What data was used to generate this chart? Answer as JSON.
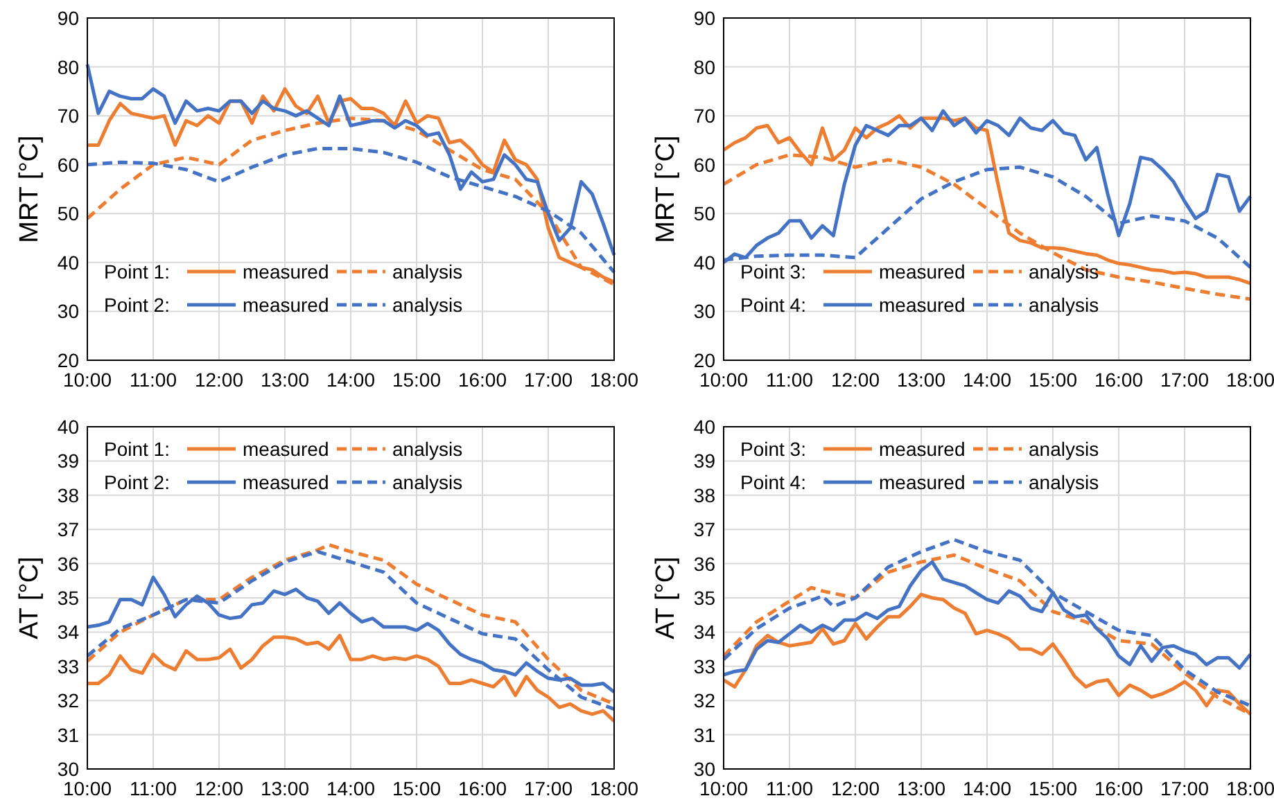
{
  "chart_data": [
    {
      "type": "line",
      "ylabel": "MRT [°C]",
      "xlim": [
        10,
        18
      ],
      "ylim": [
        20,
        90
      ],
      "yticks": [
        20,
        30,
        40,
        50,
        60,
        70,
        80,
        90
      ],
      "xticks": [
        {
          "value": 10,
          "label": "10:00"
        },
        {
          "value": 11,
          "label": "11:00"
        },
        {
          "value": 12,
          "label": "12:00"
        },
        {
          "value": 13,
          "label": "13:00"
        },
        {
          "value": 14,
          "label": "14:00"
        },
        {
          "value": 15,
          "label": "15:00"
        },
        {
          "value": 16,
          "label": "16:00"
        },
        {
          "value": 17,
          "label": "17:00"
        },
        {
          "value": 18,
          "label": "18:00"
        }
      ],
      "grid": true,
      "legend": "bottom left",
      "marker": "none",
      "annotations": [
        "Point 1:",
        "Point 2:"
      ],
      "x": [
        10,
        10.167,
        10.333,
        10.5,
        10.667,
        10.833,
        11,
        11.167,
        11.333,
        11.5,
        11.667,
        11.833,
        12,
        12.167,
        12.333,
        12.5,
        12.667,
        12.833,
        13,
        13.167,
        13.333,
        13.5,
        13.667,
        13.833,
        14,
        14.167,
        14.333,
        14.5,
        14.667,
        14.833,
        15,
        15.167,
        15.333,
        15.5,
        15.667,
        15.833,
        16,
        16.167,
        16.333,
        16.5,
        16.667,
        16.833,
        17,
        17.167,
        17.333,
        17.5,
        17.667,
        17.833,
        18
      ],
      "series": [
        {
          "name": "measured",
          "color": "#ed7d31",
          "line_style": "solid",
          "values": [
            64,
            64,
            69,
            72.5,
            70.5,
            70,
            69.5,
            70,
            64,
            69,
            68,
            70,
            68.5,
            73,
            73,
            68.5,
            74,
            71,
            75.5,
            72,
            70.5,
            74,
            68.5,
            73,
            73.5,
            71.5,
            71.5,
            70.5,
            68,
            73,
            68.5,
            70,
            69.5,
            64.5,
            65,
            63,
            60,
            58.5,
            65,
            61,
            60,
            57,
            47,
            41,
            40,
            39,
            38.5,
            37,
            36
          ]
        },
        {
          "name": "analysis",
          "color": "#ed7d31",
          "line_style": "dashed",
          "x": [
            10,
            10.5,
            11,
            11.5,
            12,
            12.5,
            13,
            13.5,
            14,
            14.5,
            15,
            15.5,
            16,
            16.5,
            17,
            17.5,
            18
          ],
          "values": [
            49,
            55,
            60,
            61.5,
            60,
            65,
            67,
            68.5,
            69.5,
            69,
            67,
            63,
            59,
            57,
            50,
            39,
            35.5
          ]
        },
        {
          "name": "measured",
          "color": "#4472c4",
          "line_style": "solid",
          "values": [
            80.5,
            70.5,
            75,
            74,
            73.5,
            73.5,
            75.5,
            74,
            68.5,
            73,
            71,
            71.5,
            71,
            73,
            73,
            70.5,
            73,
            71.5,
            71,
            70,
            71,
            69.5,
            68,
            74,
            68,
            68.5,
            69,
            69,
            67.5,
            69,
            68,
            66,
            66.5,
            62,
            55,
            58.5,
            56.5,
            57,
            62,
            60,
            57,
            56.5,
            50,
            44.5,
            47,
            56.5,
            54,
            48,
            41.5
          ]
        },
        {
          "name": "analysis",
          "color": "#4472c4",
          "line_style": "dashed",
          "x": [
            10,
            10.5,
            11,
            11.5,
            12,
            12.5,
            13,
            13.5,
            14,
            14.5,
            15,
            15.5,
            16,
            16.5,
            17,
            17.5,
            18
          ],
          "values": [
            60,
            60.5,
            60.3,
            59,
            56.5,
            59.5,
            62,
            63.3,
            63.3,
            62.5,
            60.5,
            57.5,
            55.5,
            53.5,
            50.5,
            46,
            38
          ]
        }
      ]
    },
    {
      "type": "line",
      "ylabel": "MRT [°C]",
      "xlim": [
        10,
        18
      ],
      "ylim": [
        20,
        90
      ],
      "yticks": [
        20,
        30,
        40,
        50,
        60,
        70,
        80,
        90
      ],
      "xticks": [
        {
          "value": 10,
          "label": "10:00"
        },
        {
          "value": 11,
          "label": "11:00"
        },
        {
          "value": 12,
          "label": "12:00"
        },
        {
          "value": 13,
          "label": "13:00"
        },
        {
          "value": 14,
          "label": "14:00"
        },
        {
          "value": 15,
          "label": "15:00"
        },
        {
          "value": 16,
          "label": "16:00"
        },
        {
          "value": 17,
          "label": "17:00"
        },
        {
          "value": 18,
          "label": "18:00"
        }
      ],
      "grid": true,
      "legend": "bottom left",
      "marker": "none",
      "annotations": [
        "Point 3:",
        "Point 4:"
      ],
      "x": [
        10,
        10.167,
        10.333,
        10.5,
        10.667,
        10.833,
        11,
        11.167,
        11.333,
        11.5,
        11.667,
        11.833,
        12,
        12.167,
        12.333,
        12.5,
        12.667,
        12.833,
        13,
        13.167,
        13.333,
        13.5,
        13.667,
        13.833,
        14,
        14.167,
        14.333,
        14.5,
        14.667,
        14.833,
        15,
        15.167,
        15.333,
        15.5,
        15.667,
        15.833,
        16,
        16.167,
        16.333,
        16.5,
        16.667,
        16.833,
        17,
        17.167,
        17.333,
        17.5,
        17.667,
        17.833,
        18
      ],
      "series": [
        {
          "name": "measured",
          "color": "#ed7d31",
          "line_style": "solid",
          "values": [
            63,
            64.5,
            65.5,
            67.5,
            68,
            64.5,
            65.5,
            62.5,
            60,
            67.5,
            61,
            63,
            67.5,
            65.5,
            67.5,
            68.5,
            70,
            67.5,
            69.5,
            69.5,
            69.5,
            69,
            69.5,
            67.5,
            67,
            56,
            46,
            44.5,
            44,
            43,
            43,
            42.8,
            42.3,
            41.8,
            41.5,
            40.5,
            39.8,
            39.5,
            39,
            38.5,
            38.3,
            37.8,
            38,
            37.7,
            37,
            37,
            37,
            36.5,
            35.7
          ]
        },
        {
          "name": "analysis",
          "color": "#ed7d31",
          "line_style": "dashed",
          "x": [
            10,
            10.5,
            11,
            11.5,
            12,
            12.5,
            13,
            13.5,
            14,
            14.5,
            15,
            15.5,
            16,
            16.5,
            17,
            17.5,
            18
          ],
          "values": [
            56,
            60,
            62,
            61.5,
            59.5,
            61,
            59.5,
            56,
            51,
            46,
            42,
            38.5,
            37,
            36,
            34.7,
            33.5,
            32.5
          ]
        },
        {
          "name": "measured",
          "color": "#4472c4",
          "line_style": "solid",
          "values": [
            40,
            41.7,
            41,
            43.5,
            45,
            46,
            48.5,
            48.5,
            45,
            47.5,
            45.5,
            56,
            64,
            68,
            67,
            66,
            68,
            68,
            69.5,
            67,
            71,
            68,
            69.5,
            66.5,
            69,
            68,
            66,
            69.5,
            67.5,
            67,
            69,
            66.5,
            66,
            61,
            63.5,
            54,
            45.5,
            52,
            61.5,
            61,
            59,
            56.5,
            52.5,
            49,
            50.5,
            58,
            57.5,
            50.5,
            53.5
          ]
        },
        {
          "name": "analysis",
          "color": "#4472c4",
          "line_style": "dashed",
          "x": [
            10,
            10.5,
            11,
            11.5,
            12,
            12.5,
            13,
            13.5,
            14,
            14.5,
            15,
            15.5,
            16,
            16.5,
            17,
            17.5,
            18
          ],
          "values": [
            40.5,
            41.3,
            41.5,
            41.5,
            41,
            47,
            53,
            56.5,
            59,
            59.5,
            57.5,
            53.5,
            48,
            49.5,
            48.5,
            45,
            39
          ]
        }
      ]
    },
    {
      "type": "line",
      "ylabel": "AT [°C]",
      "xlim": [
        10,
        18
      ],
      "ylim": [
        30,
        40
      ],
      "yticks": [
        30,
        31,
        32,
        33,
        34,
        35,
        36,
        37,
        38,
        39,
        40
      ],
      "xticks": [
        {
          "value": 10,
          "label": "10:00"
        },
        {
          "value": 11,
          "label": "11:00"
        },
        {
          "value": 12,
          "label": "12:00"
        },
        {
          "value": 13,
          "label": "13:00"
        },
        {
          "value": 14,
          "label": "14:00"
        },
        {
          "value": 15,
          "label": "15:00"
        },
        {
          "value": 16,
          "label": "16:00"
        },
        {
          "value": 17,
          "label": "17:00"
        },
        {
          "value": 18,
          "label": "18:00"
        }
      ],
      "grid": true,
      "legend": "top left",
      "marker": "none",
      "annotations": [
        "Point 1:",
        "Point 2:"
      ],
      "x": [
        10,
        10.167,
        10.333,
        10.5,
        10.667,
        10.833,
        11,
        11.167,
        11.333,
        11.5,
        11.667,
        11.833,
        12,
        12.167,
        12.333,
        12.5,
        12.667,
        12.833,
        13,
        13.167,
        13.333,
        13.5,
        13.667,
        13.833,
        14,
        14.167,
        14.333,
        14.5,
        14.667,
        14.833,
        15,
        15.167,
        15.333,
        15.5,
        15.667,
        15.833,
        16,
        16.167,
        16.333,
        16.5,
        16.667,
        16.833,
        17,
        17.167,
        17.333,
        17.5,
        17.667,
        17.833,
        18
      ],
      "series": [
        {
          "name": "measured",
          "color": "#ed7d31",
          "line_style": "solid",
          "values": [
            32.5,
            32.5,
            32.75,
            33.3,
            32.9,
            32.8,
            33.35,
            33.05,
            32.9,
            33.45,
            33.2,
            33.2,
            33.25,
            33.5,
            32.95,
            33.2,
            33.6,
            33.85,
            33.85,
            33.8,
            33.65,
            33.7,
            33.5,
            33.9,
            33.2,
            33.2,
            33.3,
            33.2,
            33.25,
            33.2,
            33.3,
            33.2,
            33,
            32.5,
            32.5,
            32.6,
            32.5,
            32.4,
            32.7,
            32.15,
            32.7,
            32.3,
            32.1,
            31.8,
            31.9,
            31.7,
            31.6,
            31.7,
            31.4
          ]
        },
        {
          "name": "analysis",
          "color": "#ed7d31",
          "line_style": "dashed",
          "x": [
            10,
            10.5,
            11,
            11.5,
            12,
            12.5,
            13,
            13.5,
            13.667,
            14,
            14.5,
            15,
            15.5,
            16,
            16.5,
            17,
            17.5,
            18
          ],
          "values": [
            33.15,
            34,
            34.5,
            34.95,
            34.95,
            35.6,
            36.1,
            36.4,
            36.55,
            36.35,
            36.1,
            35.4,
            34.95,
            34.5,
            34.3,
            33.2,
            32.3,
            31.9
          ]
        },
        {
          "name": "measured",
          "color": "#4472c4",
          "line_style": "solid",
          "values": [
            34.15,
            34.2,
            34.3,
            34.95,
            34.95,
            34.8,
            35.6,
            35.1,
            34.45,
            34.8,
            35.05,
            34.85,
            34.5,
            34.4,
            34.45,
            34.8,
            34.85,
            35.2,
            35.1,
            35.25,
            35,
            34.9,
            34.55,
            34.85,
            34.55,
            34.3,
            34.4,
            34.15,
            34.15,
            34.15,
            34.05,
            34.25,
            34.05,
            33.65,
            33.35,
            33.2,
            33.1,
            32.9,
            32.85,
            32.75,
            33.1,
            32.85,
            32.65,
            32.6,
            32.65,
            32.45,
            32.45,
            32.5,
            32.25
          ]
        },
        {
          "name": "analysis",
          "color": "#4472c4",
          "line_style": "dashed",
          "x": [
            10,
            10.5,
            11,
            11.5,
            12,
            12.5,
            13,
            13.5,
            14,
            14.5,
            15,
            15.5,
            16,
            16.5,
            17,
            17.5,
            18
          ],
          "values": [
            33.3,
            34.1,
            34.5,
            34.95,
            34.85,
            35.5,
            36.05,
            36.35,
            36.05,
            35.75,
            34.85,
            34.4,
            33.95,
            33.8,
            32.9,
            32.1,
            31.75
          ]
        }
      ]
    },
    {
      "type": "line",
      "ylabel": "AT [°C]",
      "xlim": [
        10,
        18
      ],
      "ylim": [
        30,
        40
      ],
      "yticks": [
        30,
        31,
        32,
        33,
        34,
        35,
        36,
        37,
        38,
        39,
        40
      ],
      "xticks": [
        {
          "value": 10,
          "label": "10:00"
        },
        {
          "value": 11,
          "label": "11:00"
        },
        {
          "value": 12,
          "label": "12:00"
        },
        {
          "value": 13,
          "label": "13:00"
        },
        {
          "value": 14,
          "label": "14:00"
        },
        {
          "value": 15,
          "label": "15:00"
        },
        {
          "value": 16,
          "label": "16:00"
        },
        {
          "value": 17,
          "label": "17:00"
        },
        {
          "value": 18,
          "label": "18:00"
        }
      ],
      "grid": true,
      "legend": "top left",
      "marker": "none",
      "annotations": [
        "Point 3:",
        "Point 4:"
      ],
      "x": [
        10,
        10.167,
        10.333,
        10.5,
        10.667,
        10.833,
        11,
        11.167,
        11.333,
        11.5,
        11.667,
        11.833,
        12,
        12.167,
        12.333,
        12.5,
        12.667,
        12.833,
        13,
        13.167,
        13.333,
        13.5,
        13.667,
        13.833,
        14,
        14.167,
        14.333,
        14.5,
        14.667,
        14.833,
        15,
        15.167,
        15.333,
        15.5,
        15.667,
        15.833,
        16,
        16.167,
        16.333,
        16.5,
        16.667,
        16.833,
        17,
        17.167,
        17.333,
        17.5,
        17.667,
        17.833,
        18
      ],
      "series": [
        {
          "name": "measured",
          "color": "#ed7d31",
          "line_style": "solid",
          "values": [
            32.6,
            32.4,
            32.9,
            33.6,
            33.9,
            33.7,
            33.6,
            33.65,
            33.7,
            34.1,
            33.65,
            33.75,
            34.25,
            33.8,
            34.15,
            34.45,
            34.45,
            34.75,
            35.1,
            35,
            34.95,
            34.7,
            34.55,
            33.95,
            34.05,
            33.95,
            33.8,
            33.5,
            33.5,
            33.35,
            33.65,
            33.2,
            32.7,
            32.4,
            32.55,
            32.6,
            32.15,
            32.45,
            32.3,
            32.1,
            32.2,
            32.35,
            32.55,
            32.3,
            31.85,
            32.3,
            32.25,
            31.9,
            31.6
          ]
        },
        {
          "name": "analysis",
          "color": "#ed7d31",
          "line_style": "dashed",
          "x": [
            10,
            10.5,
            11,
            11.333,
            11.5,
            12,
            12.5,
            13,
            13.5,
            14,
            14.5,
            15,
            15.5,
            16,
            16.5,
            17,
            17.5,
            18
          ],
          "values": [
            33.3,
            34.3,
            34.9,
            35.3,
            35.2,
            35,
            35.75,
            36.05,
            36.25,
            35.85,
            35.5,
            34.6,
            34.3,
            33.75,
            33.65,
            32.8,
            32.1,
            31.6
          ]
        },
        {
          "name": "measured",
          "color": "#4472c4",
          "line_style": "solid",
          "values": [
            32.75,
            32.85,
            32.9,
            33.5,
            33.75,
            33.7,
            33.95,
            34.2,
            34,
            34.2,
            34.05,
            34.35,
            34.35,
            34.55,
            34.4,
            34.65,
            34.75,
            35.35,
            35.8,
            36.05,
            35.55,
            35.45,
            35.35,
            35.15,
            34.95,
            34.85,
            35.2,
            35.05,
            34.7,
            34.6,
            35.15,
            34.65,
            34.45,
            34.5,
            34.1,
            33.8,
            33.3,
            33.05,
            33.6,
            33.15,
            33.55,
            33.6,
            33.45,
            33.35,
            33.05,
            33.25,
            33.25,
            32.95,
            33.35
          ]
        },
        {
          "name": "analysis",
          "color": "#4472c4",
          "line_style": "dashed",
          "x": [
            10,
            10.5,
            11,
            11.5,
            11.667,
            12,
            12.5,
            13,
            13.5,
            14,
            14.5,
            15,
            15.5,
            16,
            16.5,
            17,
            17.5,
            18
          ],
          "values": [
            33.2,
            34.1,
            34.7,
            35.05,
            34.75,
            35,
            35.9,
            36.35,
            36.7,
            36.35,
            36.1,
            35.15,
            34.6,
            34.05,
            33.9,
            32.9,
            32.25,
            31.85
          ]
        }
      ]
    }
  ]
}
